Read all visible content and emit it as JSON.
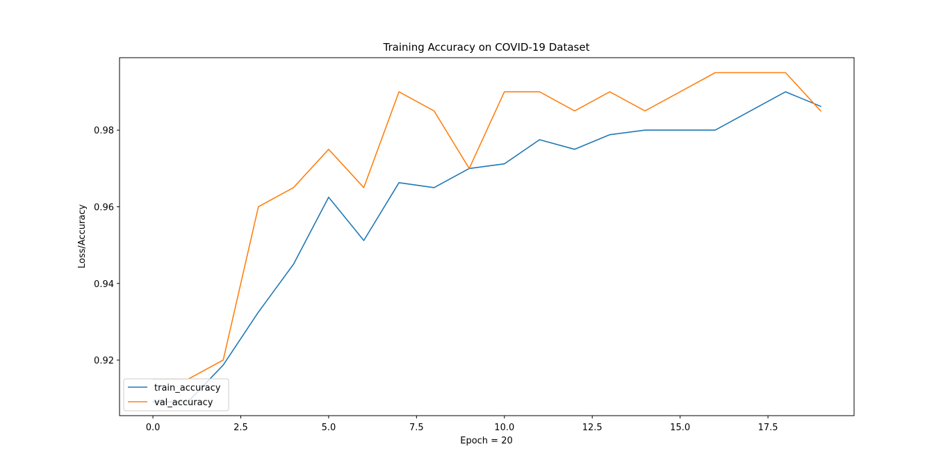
{
  "chart_data": {
    "type": "line",
    "title": "Training Accuracy on COVID-19 Dataset",
    "xlabel": "Epoch = 20",
    "ylabel": "Loss/Accuracy",
    "xlim": [
      -0.95,
      19.95
    ],
    "ylim": [
      0.9055,
      0.9989
    ],
    "x_ticks": [
      0.0,
      2.5,
      5.0,
      7.5,
      10.0,
      12.5,
      15.0,
      17.5
    ],
    "x_tick_labels": [
      "0.0",
      "2.5",
      "5.0",
      "7.5",
      "10.0",
      "12.5",
      "15.0",
      "17.5"
    ],
    "y_ticks": [
      0.92,
      0.94,
      0.96,
      0.98
    ],
    "y_tick_labels": [
      "0.92",
      "0.94",
      "0.96",
      "0.98"
    ],
    "grid": false,
    "legend_position": "lower-left",
    "x": [
      0,
      1,
      2,
      3,
      4,
      5,
      6,
      7,
      8,
      9,
      10,
      11,
      12,
      13,
      14,
      15,
      16,
      17,
      18,
      19
    ],
    "series": [
      {
        "name": "train_accuracy",
        "color": "#1f77b4",
        "values": [
          0.9091,
          0.9091,
          0.9187,
          0.9325,
          0.945,
          0.9625,
          0.9512,
          0.9663,
          0.965,
          0.97,
          0.9712,
          0.9775,
          0.975,
          0.9788,
          0.98,
          0.98,
          0.98,
          0.985,
          0.99,
          0.9862
        ]
      },
      {
        "name": "val_accuracy",
        "color": "#ff7f0e",
        "values": [
          0.915,
          0.915,
          0.92,
          0.96,
          0.965,
          0.975,
          0.965,
          0.99,
          0.985,
          0.97,
          0.99,
          0.99,
          0.985,
          0.99,
          0.985,
          0.99,
          0.995,
          0.995,
          0.995,
          0.985
        ]
      }
    ]
  }
}
